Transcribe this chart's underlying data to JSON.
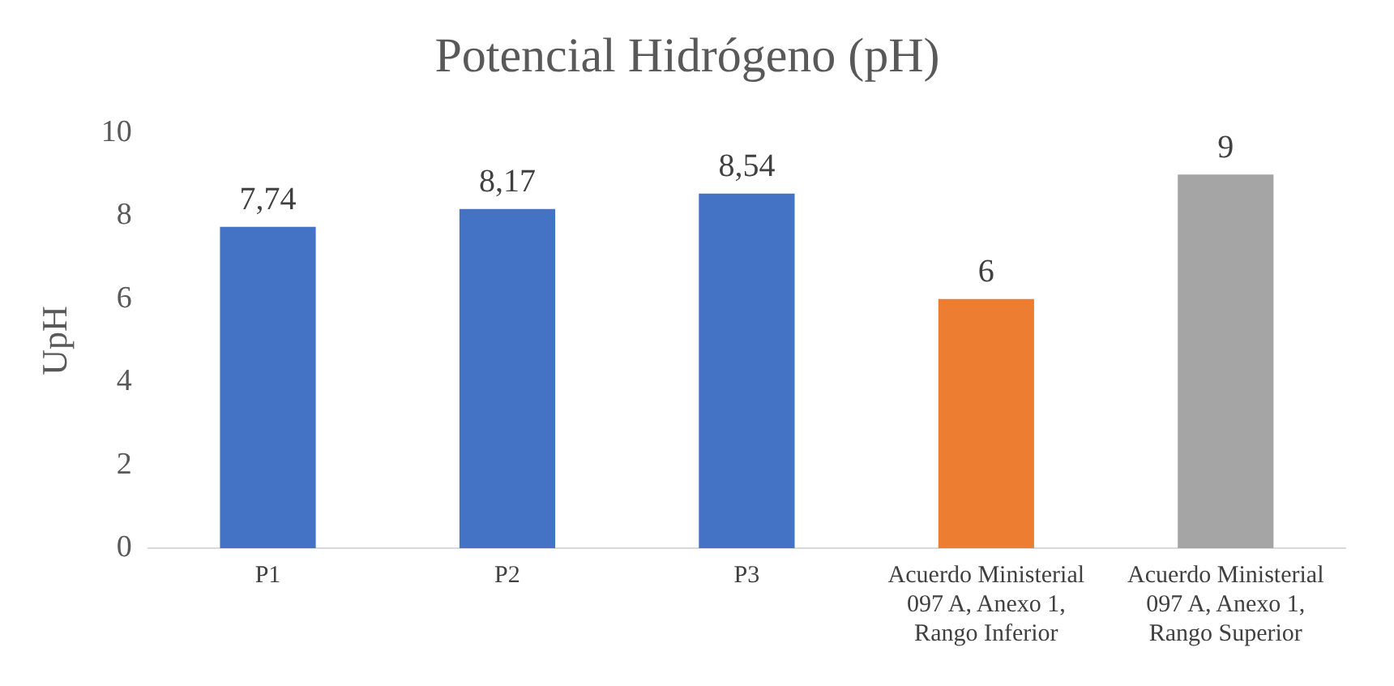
{
  "chart_data": {
    "type": "bar",
    "title": "Potencial Hidrógeno (pH)",
    "ylabel": "UpH",
    "categories": [
      "P1",
      "P2",
      "P3",
      "Acuerdo Ministerial 097 A, Anexo 1, Rango Inferior",
      "Acuerdo Ministerial 097 A, Anexo 1, Rango Superior"
    ],
    "values": [
      7.74,
      8.17,
      8.54,
      6,
      9
    ],
    "colors": [
      "#4472c4",
      "#4472c4",
      "#4472c4",
      "#ed7d31",
      "#a5a5a5"
    ],
    "value_labels": [
      "7,74",
      "8,17",
      "8,54",
      "6",
      "9"
    ],
    "ylim": [
      0,
      10
    ],
    "yticks": [
      0,
      2,
      4,
      6,
      8,
      10
    ],
    "grid": false,
    "legend": false
  }
}
